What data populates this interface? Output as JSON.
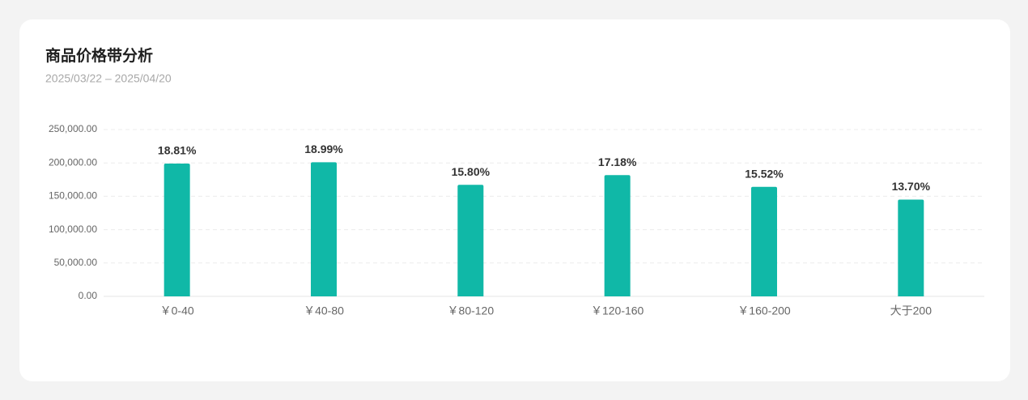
{
  "chart_data": {
    "type": "bar",
    "title": "商品价格带分析",
    "subtitle": "2025/03/22 – 2025/04/20",
    "categories": [
      "￥0-40",
      "￥40-80",
      "￥80-120",
      "￥120-160",
      "￥160-200",
      "大于200"
    ],
    "values": [
      199000,
      201000,
      167200,
      181800,
      164200,
      145000
    ],
    "data_labels": [
      "18.81%",
      "18.99%",
      "15.80%",
      "17.18%",
      "15.52%",
      "13.70%"
    ],
    "color": "#10b8a7",
    "ylim": [
      0,
      250000
    ],
    "yticks": [
      {
        "value": 0,
        "label": "0.00"
      },
      {
        "value": 50000,
        "label": "50,000.00"
      },
      {
        "value": 100000,
        "label": "100,000.00"
      },
      {
        "value": 150000,
        "label": "150,000.00"
      },
      {
        "value": 200000,
        "label": "200,000.00"
      },
      {
        "value": 250000,
        "label": "250,000.00"
      }
    ],
    "grid": true
  }
}
